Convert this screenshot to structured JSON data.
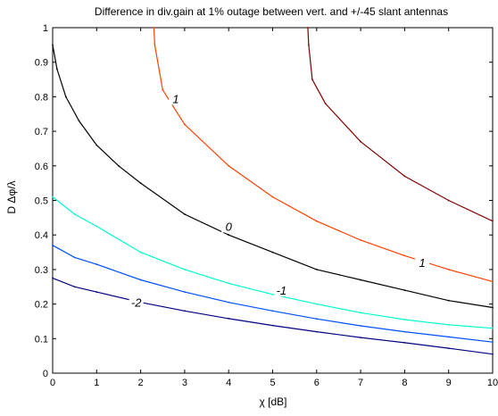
{
  "chart_data": {
    "type": "line",
    "title": "Difference in div.gain at 1% outage between vert. and +/-45 slant antennas",
    "xlabel": "χ  [dB]",
    "ylabel": "D Δφ/λ",
    "xlim": [
      0,
      10
    ],
    "ylim": [
      0,
      1
    ],
    "xticks": [
      0,
      1,
      2,
      3,
      4,
      5,
      6,
      7,
      8,
      9,
      10
    ],
    "yticks": [
      0,
      0.1,
      0.2,
      0.3,
      0.4,
      0.5,
      0.6,
      0.7,
      0.8,
      0.9,
      1
    ],
    "grid": false,
    "series": [
      {
        "name": "-2",
        "color": "#000080",
        "x": [
          0,
          0.5,
          1,
          2,
          3,
          4,
          5,
          6,
          7,
          8,
          9,
          10
        ],
        "y": [
          0.275,
          0.25,
          0.235,
          0.205,
          0.18,
          0.158,
          0.138,
          0.12,
          0.103,
          0.088,
          0.072,
          0.055
        ]
      },
      {
        "name": "",
        "color": "#0050ff",
        "x": [
          0,
          0.5,
          1,
          2,
          3,
          4,
          5,
          6,
          7,
          8,
          9,
          10
        ],
        "y": [
          0.37,
          0.335,
          0.315,
          0.27,
          0.235,
          0.205,
          0.18,
          0.157,
          0.137,
          0.12,
          0.105,
          0.09
        ]
      },
      {
        "name": "-1",
        "color": "#00ffcc",
        "x": [
          0,
          0.5,
          1,
          2,
          3,
          4,
          5,
          6,
          7,
          8,
          9,
          10
        ],
        "y": [
          0.51,
          0.46,
          0.425,
          0.35,
          0.3,
          0.26,
          0.228,
          0.2,
          0.175,
          0.155,
          0.14,
          0.13
        ]
      },
      {
        "name": "0",
        "color": "#000000",
        "x": [
          0,
          0.1,
          0.3,
          0.6,
          1,
          1.5,
          2,
          3,
          4,
          5,
          6,
          7,
          8,
          9,
          10
        ],
        "y": [
          0.95,
          0.88,
          0.8,
          0.73,
          0.66,
          0.6,
          0.55,
          0.46,
          0.4,
          0.35,
          0.3,
          0.27,
          0.24,
          0.21,
          0.19
        ]
      },
      {
        "name": "1",
        "color": "#ff4000",
        "x": [
          2.3,
          2.32,
          2.5,
          3,
          4,
          5,
          6,
          7,
          8,
          9,
          10
        ],
        "y": [
          1.0,
          0.95,
          0.82,
          0.72,
          0.6,
          0.51,
          0.44,
          0.385,
          0.34,
          0.3,
          0.265
        ]
      },
      {
        "name": "",
        "color": "#800000",
        "x": [
          5.8,
          5.82,
          5.9,
          6.2,
          7,
          8,
          9,
          10
        ],
        "y": [
          1.0,
          0.95,
          0.85,
          0.78,
          0.67,
          0.57,
          0.5,
          0.44
        ]
      }
    ],
    "annotations": [
      {
        "text": "1",
        "x": 2.8,
        "y": 0.79
      },
      {
        "text": "0",
        "x": 4.0,
        "y": 0.42
      },
      {
        "text": "1",
        "x": 8.4,
        "y": 0.315
      },
      {
        "text": "-1",
        "x": 5.2,
        "y": 0.235
      },
      {
        "text": "-2",
        "x": 1.9,
        "y": 0.2
      }
    ]
  }
}
